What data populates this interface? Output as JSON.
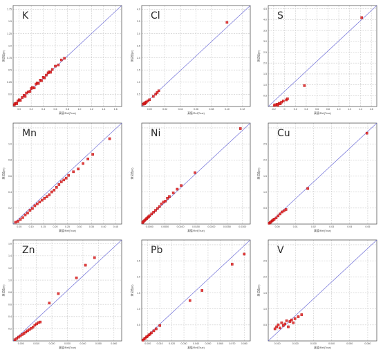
{
  "colors": {
    "point": "#e02020",
    "point_dark": "#b00000",
    "line": "#6f6fd8",
    "grid": "#c8c8c8",
    "frame": "#555555"
  },
  "chart_data": [
    {
      "type": "scatter",
      "title": "K",
      "xlabel": "真值/Ref(True)",
      "ylabel": "测试值(m)",
      "xlim": [
        0,
        1.8
      ],
      "ylim": [
        0,
        1.8
      ],
      "grid": true,
      "xticks": [
        "0.0",
        "0.2",
        "0.4",
        "0.6",
        "0.8",
        "1.0",
        "1.2",
        "1.4",
        "1.6"
      ],
      "yticks": [
        "0.0",
        "0.25",
        "0.5",
        "0.75",
        "1.0",
        "1.25",
        "1.5",
        "1.75"
      ],
      "points": [
        [
          0.02,
          0.03
        ],
        [
          0.03,
          0.05
        ],
        [
          0.05,
          0.06
        ],
        [
          0.06,
          0.05
        ],
        [
          0.08,
          0.1
        ],
        [
          0.1,
          0.12
        ],
        [
          0.12,
          0.11
        ],
        [
          0.15,
          0.16
        ],
        [
          0.18,
          0.2
        ],
        [
          0.2,
          0.18
        ],
        [
          0.22,
          0.24
        ],
        [
          0.25,
          0.26
        ],
        [
          0.28,
          0.27
        ],
        [
          0.3,
          0.32
        ],
        [
          0.32,
          0.34
        ],
        [
          0.35,
          0.33
        ],
        [
          0.38,
          0.4
        ],
        [
          0.4,
          0.42
        ],
        [
          0.42,
          0.41
        ],
        [
          0.45,
          0.47
        ],
        [
          0.47,
          0.46
        ],
        [
          0.5,
          0.52
        ],
        [
          0.52,
          0.51
        ],
        [
          0.55,
          0.56
        ],
        [
          0.58,
          0.6
        ],
        [
          0.6,
          0.62
        ],
        [
          0.62,
          0.61
        ],
        [
          0.65,
          0.66
        ],
        [
          0.7,
          0.72
        ],
        [
          0.75,
          0.74
        ],
        [
          0.8,
          0.83
        ],
        [
          0.85,
          0.86
        ]
      ]
    },
    {
      "type": "scatter",
      "title": "Cl",
      "xlabel": "真值/Ref(True)",
      "ylabel": "测试值(m)",
      "xlim": [
        0,
        0.14
      ],
      "ylim": [
        0,
        4.5
      ],
      "grid": true,
      "xticks": [
        "0.00",
        "0.02",
        "0.04",
        "0.06",
        "0.08",
        "0.10",
        "0.12"
      ],
      "yticks": [
        "0.5",
        "1.0",
        "1.5",
        "2.0",
        "2.5",
        "3.0",
        "3.5",
        "4.0"
      ],
      "points": [
        [
          0.002,
          0.1
        ],
        [
          0.003,
          0.15
        ],
        [
          0.004,
          0.12
        ],
        [
          0.005,
          0.18
        ],
        [
          0.006,
          0.2
        ],
        [
          0.008,
          0.25
        ],
        [
          0.01,
          0.3
        ],
        [
          0.015,
          0.45
        ],
        [
          0.018,
          0.55
        ],
        [
          0.02,
          0.62
        ],
        [
          0.022,
          0.7
        ],
        [
          0.11,
          3.75
        ]
      ]
    },
    {
      "type": "scatter",
      "title": "S",
      "xlabel": "真值/Ref(True)",
      "ylabel": "测试值(m)",
      "xlim": [
        -0.2,
        1.6
      ],
      "ylim": [
        0,
        4.6
      ],
      "grid": true,
      "xticks": [
        "-0.2",
        "0",
        "0.2",
        "0.4",
        "0.6",
        "0.8",
        "1.0",
        "1.2",
        "1.4",
        "1.6"
      ],
      "yticks": [
        "0.5",
        "1.0",
        "1.5",
        "2.0",
        "2.5",
        "3.0",
        "3.5",
        "4.0",
        "4.5"
      ],
      "points": [
        [
          -0.1,
          0.05
        ],
        [
          -0.08,
          0.08
        ],
        [
          -0.05,
          0.1
        ],
        [
          -0.04,
          0.05
        ],
        [
          -0.02,
          0.15
        ],
        [
          0,
          0.12
        ],
        [
          0.02,
          0.2
        ],
        [
          0.05,
          0.25
        ],
        [
          0.1,
          0.3
        ],
        [
          0.12,
          0.35
        ],
        [
          0.4,
          0.95
        ],
        [
          1.35,
          4.05
        ]
      ]
    },
    {
      "type": "scatter",
      "title": "Mn",
      "xlabel": "真值/Ref(True)",
      "ylabel": "测试值(m)",
      "xlim": [
        0,
        0.45
      ],
      "ylim": [
        0,
        1.1
      ],
      "grid": true,
      "xticks": [
        "0.05",
        "0.10",
        "0.15",
        "0.20",
        "0.25",
        "0.30",
        "0.35",
        "0.40",
        "0.45"
      ],
      "yticks": [
        "0.2",
        "0.4",
        "0.6",
        "0.8",
        "1.0"
      ],
      "points": [
        [
          0.01,
          0.02
        ],
        [
          0.02,
          0.03
        ],
        [
          0.03,
          0.05
        ],
        [
          0.04,
          0.07
        ],
        [
          0.05,
          0.1
        ],
        [
          0.06,
          0.12
        ],
        [
          0.07,
          0.15
        ],
        [
          0.08,
          0.17
        ],
        [
          0.09,
          0.2
        ],
        [
          0.1,
          0.22
        ],
        [
          0.11,
          0.24
        ],
        [
          0.12,
          0.26
        ],
        [
          0.13,
          0.28
        ],
        [
          0.14,
          0.3
        ],
        [
          0.15,
          0.32
        ],
        [
          0.16,
          0.35
        ],
        [
          0.17,
          0.37
        ],
        [
          0.18,
          0.4
        ],
        [
          0.19,
          0.43
        ],
        [
          0.2,
          0.46
        ],
        [
          0.21,
          0.48
        ],
        [
          0.22,
          0.5
        ],
        [
          0.23,
          0.53
        ],
        [
          0.25,
          0.57
        ],
        [
          0.27,
          0.6
        ],
        [
          0.29,
          0.66
        ],
        [
          0.31,
          0.71
        ],
        [
          0.33,
          0.76
        ],
        [
          0.4,
          0.93
        ]
      ]
    },
    {
      "type": "scatter",
      "title": "Ni",
      "xlabel": "真值/Ref(True)",
      "ylabel": "测试值(m)",
      "xlim": [
        0,
        0.055
      ],
      "ylim": [
        0,
        0.055
      ],
      "grid": true,
      "xticks": [
        "0.0000",
        "0.0050",
        "0.0100",
        "0.0150",
        "0.0200",
        "0.0250",
        "0.0300"
      ],
      "yticks": [],
      "points": [
        [
          0.0005,
          0.0008
        ],
        [
          0.001,
          0.0015
        ],
        [
          0.0015,
          0.002
        ],
        [
          0.002,
          0.0025
        ],
        [
          0.0025,
          0.003
        ],
        [
          0.003,
          0.0035
        ],
        [
          0.0035,
          0.004
        ],
        [
          0.004,
          0.0045
        ],
        [
          0.005,
          0.0055
        ],
        [
          0.006,
          0.0065
        ],
        [
          0.007,
          0.0075
        ],
        [
          0.008,
          0.0085
        ],
        [
          0.009,
          0.0095
        ],
        [
          0.01,
          0.011
        ],
        [
          0.011,
          0.012
        ],
        [
          0.012,
          0.0125
        ],
        [
          0.013,
          0.014
        ],
        [
          0.014,
          0.015
        ],
        [
          0.016,
          0.017
        ],
        [
          0.018,
          0.019
        ],
        [
          0.02,
          0.021
        ],
        [
          0.027,
          0.028
        ],
        [
          0.05,
          0.052
        ]
      ]
    },
    {
      "type": "scatter",
      "title": "Cu",
      "xlabel": "真值/Ref(True)",
      "ylabel": "测试值(m)",
      "xlim": [
        0,
        0.055
      ],
      "ylim": [
        0,
        2.5
      ],
      "grid": true,
      "xticks": [
        "0.00",
        "0.01",
        "0.02",
        "0.03",
        "0.04",
        "0.05"
      ],
      "yticks": [
        "0.5",
        "1.0",
        "1.5",
        "2.0",
        "2.5"
      ],
      "points": [
        [
          0.0005,
          0.02
        ],
        [
          0.001,
          0.04
        ],
        [
          0.0015,
          0.06
        ],
        [
          0.002,
          0.08
        ],
        [
          0.0025,
          0.1
        ],
        [
          0.003,
          0.12
        ],
        [
          0.004,
          0.15
        ],
        [
          0.005,
          0.2
        ],
        [
          0.006,
          0.25
        ],
        [
          0.007,
          0.3
        ],
        [
          0.008,
          0.33
        ],
        [
          0.009,
          0.36
        ],
        [
          0.02,
          0.88
        ],
        [
          0.05,
          2.25
        ]
      ]
    },
    {
      "type": "scatter",
      "title": "Zn",
      "xlabel": "真值/Ref(True)",
      "ylabel": "测试值(m)",
      "xlim": [
        0,
        0.06
      ],
      "ylim": [
        0,
        1.6
      ],
      "grid": true,
      "xticks": [
        "0.000",
        "0.010",
        "0.020",
        "0.030",
        "0.040",
        "0.050",
        "0.060"
      ],
      "yticks": [
        "0.2",
        "0.4",
        "0.6",
        "0.8",
        "1.0",
        "1.2",
        "1.4",
        "1.6"
      ],
      "points": [
        [
          0.001,
          0.02
        ],
        [
          0.002,
          0.04
        ],
        [
          0.003,
          0.06
        ],
        [
          0.004,
          0.08
        ],
        [
          0.005,
          0.1
        ],
        [
          0.006,
          0.12
        ],
        [
          0.007,
          0.14
        ],
        [
          0.008,
          0.16
        ],
        [
          0.009,
          0.18
        ],
        [
          0.01,
          0.2
        ],
        [
          0.011,
          0.22
        ],
        [
          0.012,
          0.25
        ],
        [
          0.013,
          0.27
        ],
        [
          0.014,
          0.29
        ],
        [
          0.015,
          0.3
        ],
        [
          0.02,
          0.6
        ],
        [
          0.025,
          0.75
        ],
        [
          0.035,
          1.0
        ],
        [
          0.04,
          1.2
        ],
        [
          0.045,
          1.32
        ]
      ]
    },
    {
      "type": "scatter",
      "title": "Pb",
      "xlabel": "真值/Ref(True)",
      "ylabel": "测试值(m)",
      "xlim": [
        0,
        0.09
      ],
      "ylim": [
        0,
        2.5
      ],
      "grid": true,
      "xticks": [
        "0.000",
        "0.010",
        "0.020",
        "0.030",
        "0.040",
        "0.050",
        "0.060",
        "0.070",
        "0.080"
      ],
      "yticks": [
        "0.5",
        "1.0",
        "1.5",
        "2.0",
        "2.5"
      ],
      "points": [
        [
          0.001,
          0.02
        ],
        [
          0.002,
          0.05
        ],
        [
          0.003,
          0.07
        ],
        [
          0.004,
          0.1
        ],
        [
          0.005,
          0.12
        ],
        [
          0.006,
          0.15
        ],
        [
          0.007,
          0.17
        ],
        [
          0.008,
          0.2
        ],
        [
          0.01,
          0.25
        ],
        [
          0.012,
          0.3
        ],
        [
          0.015,
          0.38
        ],
        [
          0.04,
          1.0
        ],
        [
          0.05,
          1.25
        ],
        [
          0.075,
          1.9
        ],
        [
          0.085,
          2.15
        ]
      ]
    },
    {
      "type": "scatter",
      "title": "V",
      "xlabel": "真值/Ref(True)",
      "ylabel": "测试值(m)",
      "xlim": [
        0,
        0.065
      ],
      "ylim": [
        0,
        2.5
      ],
      "grid": true,
      "xticks": [
        "0.010",
        "0.020",
        "0.030",
        "0.040",
        "0.050",
        "0.060"
      ],
      "yticks": [
        "0.5",
        "1.0",
        "1.5",
        "2.0",
        "2.5"
      ],
      "points": [
        [
          0.004,
          0.3
        ],
        [
          0.005,
          0.35
        ],
        [
          0.006,
          0.4
        ],
        [
          0.007,
          0.32
        ],
        [
          0.008,
          0.45
        ],
        [
          0.009,
          0.38
        ],
        [
          0.01,
          0.42
        ],
        [
          0.011,
          0.5
        ],
        [
          0.012,
          0.35
        ],
        [
          0.013,
          0.48
        ],
        [
          0.014,
          0.52
        ],
        [
          0.015,
          0.45
        ],
        [
          0.016,
          0.55
        ],
        [
          0.018,
          0.6
        ],
        [
          0.02,
          0.65
        ]
      ]
    }
  ]
}
